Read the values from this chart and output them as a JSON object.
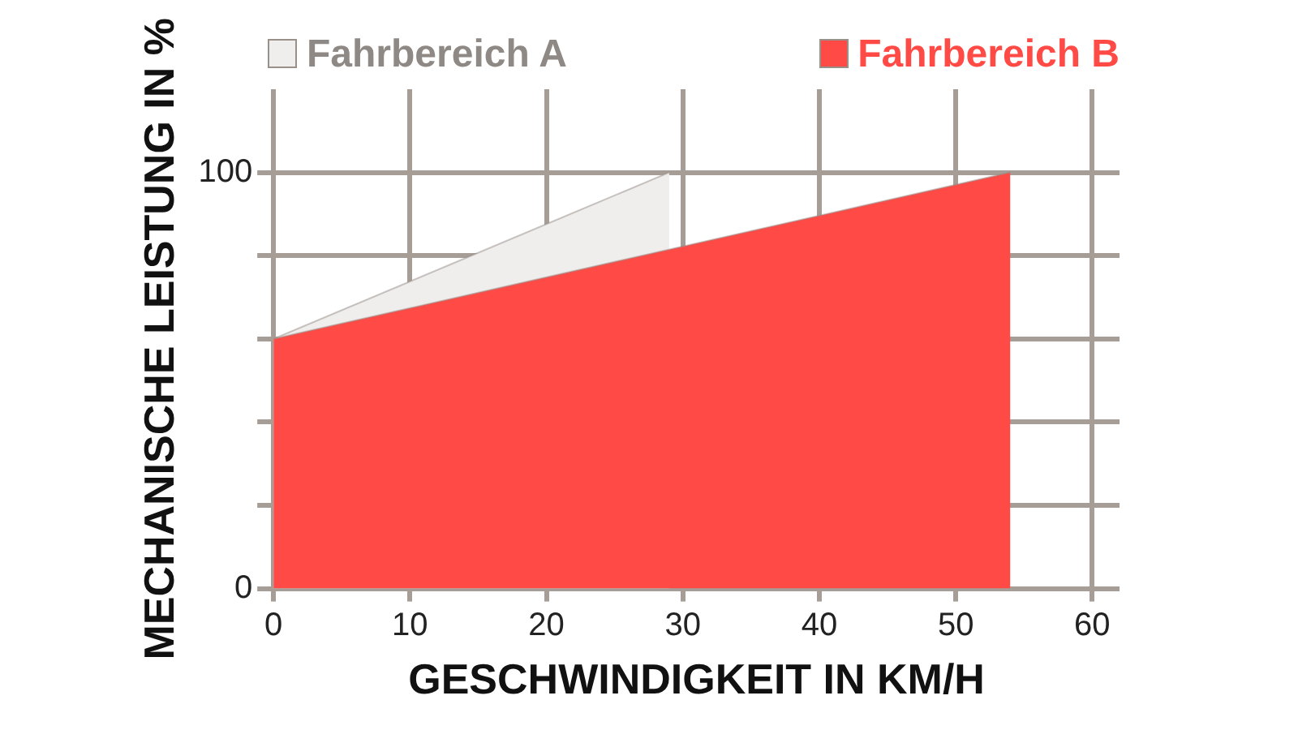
{
  "chart_data": {
    "type": "area",
    "xlabel": "GESCHWINDIGKEIT IN KM/H",
    "ylabel": "MECHANISCHE LEISTUNG IN %",
    "xlim": [
      0,
      62
    ],
    "xticks": [
      0,
      10,
      20,
      30,
      40,
      50,
      60
    ],
    "ylim": [
      0,
      120
    ],
    "yticks": [
      0,
      {
        "value": 20,
        "label": null
      },
      {
        "value": 40,
        "label": null
      },
      {
        "value": 60,
        "label": null
      },
      {
        "value": 80,
        "label": null
      },
      100
    ],
    "grid": true,
    "legend": "top",
    "series": [
      {
        "name": "Fahrbereich A",
        "color": "#efeeec",
        "x": [
          0,
          29
        ],
        "values": [
          60,
          100
        ]
      },
      {
        "name": "Fahrbereich B",
        "color": "#ff4a45",
        "x": [
          0,
          54
        ],
        "values": [
          60,
          100
        ]
      }
    ]
  }
}
